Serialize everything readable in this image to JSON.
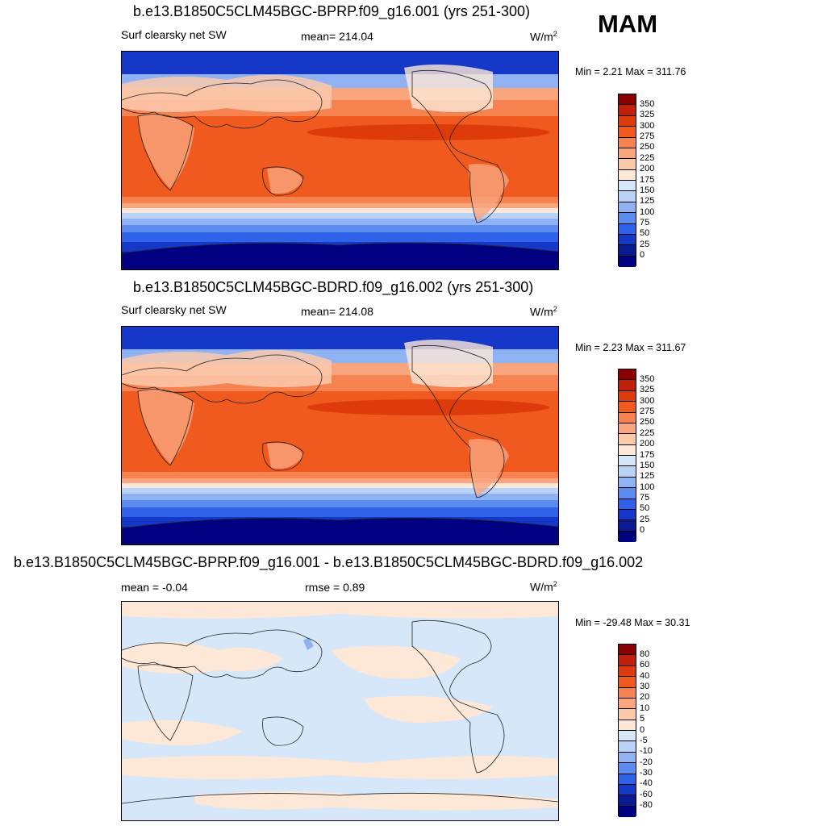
{
  "season": "MAM",
  "panels": [
    {
      "title": "b.e13.B1850C5CLM45BGC-BPRP.f09_g16.001 (yrs 251-300)",
      "left_label": "Surf clearsky net SW",
      "mid_label": "mean= 214.04",
      "units": "W/m",
      "units_sup": "2",
      "minmax": "Min =   2.21 Max = 311.76"
    },
    {
      "title": "b.e13.B1850C5CLM45BGC-BDRD.f09_g16.002 (yrs 251-300)",
      "left_label": "Surf clearsky net SW",
      "mid_label": "mean= 214.08",
      "units": "W/m",
      "units_sup": "2",
      "minmax": "Min =   2.23 Max = 311.67"
    },
    {
      "title": "b.e13.B1850C5CLM45BGC-BPRP.f09_g16.001 - b.e13.B1850C5CLM45BGC-BDRD.f09_g16.002",
      "left_label": "mean =  -0.04",
      "mid_label": "rmse =   0.89",
      "units": "W/m",
      "units_sup": "2",
      "minmax": "Min = -29.48 Max =  30.31"
    }
  ],
  "colorbar_abs": {
    "labels": [
      "350",
      "325",
      "300",
      "275",
      "250",
      "225",
      "200",
      "175",
      "150",
      "125",
      "100",
      "75",
      "50",
      "25",
      "0"
    ],
    "colors": [
      "#8b0000",
      "#c0200a",
      "#dd3b0b",
      "#f05a1f",
      "#f5824f",
      "#f9a57e",
      "#fcc9ab",
      "#fde7d6",
      "#d6e7fa",
      "#b8d3f7",
      "#8fb2f2",
      "#5c8cf0",
      "#2f62e8",
      "#1638c9",
      "#0a1b8f",
      "#000080"
    ]
  },
  "colorbar_diff": {
    "labels": [
      "80",
      "60",
      "40",
      "30",
      "20",
      "10",
      "5",
      "0",
      "-5",
      "-10",
      "-20",
      "-30",
      "-40",
      "-60",
      "-80"
    ],
    "colors": [
      "#8b0000",
      "#c0200a",
      "#dd3b0b",
      "#f05a1f",
      "#f5824f",
      "#f9a57e",
      "#fcc9ab",
      "#fde7d6",
      "#d6e7fa",
      "#b8d3f7",
      "#8fb2f2",
      "#5c8cf0",
      "#2f62e8",
      "#1638c9",
      "#0a1b8f",
      "#000080"
    ]
  }
}
